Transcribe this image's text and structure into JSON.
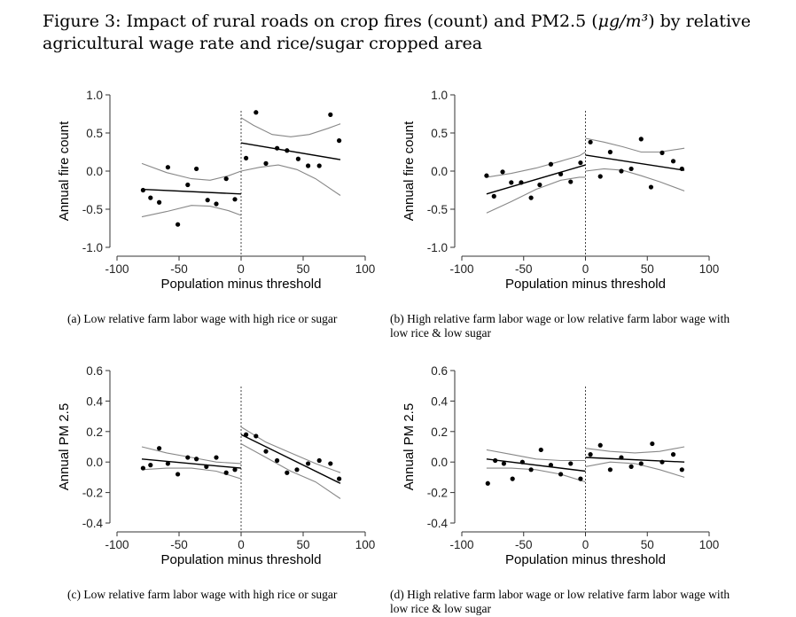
{
  "figure": {
    "title_prefix": "Figure 3: Impact of rural roads on crop fires (count) and PM2.5 (",
    "title_unit": "μg/m³",
    "title_suffix": ") by relative agricultural wage rate and rice/sugar cropped area"
  },
  "chart_data": [
    {
      "type": "scatter",
      "panel": "a",
      "caption": "(a)  Low relative farm labor wage with high rice or sugar",
      "xlabel": "Population minus threshold",
      "ylabel": "Annual fire count",
      "xlim": [
        -100,
        100
      ],
      "ylim": [
        -1.0,
        1.0
      ],
      "xticks": [
        -100,
        -50,
        0,
        50,
        100
      ],
      "yticks": [
        "-1.0",
        "-0.5",
        "0.0",
        "0.5",
        "1.0"
      ],
      "threshold_line": 0,
      "points": [
        [
          -79,
          -0.25
        ],
        [
          -73,
          -0.35
        ],
        [
          -66,
          -0.41
        ],
        [
          -59,
          0.05
        ],
        [
          -51,
          -0.7
        ],
        [
          -43,
          -0.18
        ],
        [
          -36,
          0.03
        ],
        [
          -27,
          -0.38
        ],
        [
          -20,
          -0.43
        ],
        [
          -12,
          -0.1
        ],
        [
          -5,
          -0.37
        ],
        [
          4,
          0.17
        ],
        [
          12,
          0.77
        ],
        [
          20,
          0.1
        ],
        [
          29,
          0.3
        ],
        [
          37,
          0.27
        ],
        [
          46,
          0.16
        ],
        [
          54,
          0.07
        ],
        [
          63,
          0.07
        ],
        [
          72,
          0.74
        ],
        [
          79,
          0.4
        ]
      ],
      "fit_left": [
        [
          -80,
          -0.24
        ],
        [
          0,
          -0.3
        ]
      ],
      "fit_right": [
        [
          0,
          0.37
        ],
        [
          80,
          0.15
        ]
      ],
      "ci_left_upper": [
        [
          -80,
          0.1
        ],
        [
          -60,
          -0.02
        ],
        [
          -40,
          -0.1
        ],
        [
          -25,
          -0.12
        ],
        [
          -10,
          -0.06
        ],
        [
          0,
          0.0
        ]
      ],
      "ci_left_lower": [
        [
          -80,
          -0.6
        ],
        [
          -60,
          -0.53
        ],
        [
          -40,
          -0.45
        ],
        [
          -25,
          -0.46
        ],
        [
          -10,
          -0.52
        ],
        [
          0,
          -0.58
        ]
      ],
      "ci_right_upper": [
        [
          0,
          0.7
        ],
        [
          10,
          0.6
        ],
        [
          25,
          0.48
        ],
        [
          40,
          0.45
        ],
        [
          55,
          0.48
        ],
        [
          70,
          0.56
        ],
        [
          80,
          0.62
        ]
      ],
      "ci_right_lower": [
        [
          0,
          0.0
        ],
        [
          15,
          0.05
        ],
        [
          30,
          0.08
        ],
        [
          45,
          0.02
        ],
        [
          60,
          -0.1
        ],
        [
          80,
          -0.32
        ]
      ]
    },
    {
      "type": "scatter",
      "panel": "b",
      "caption": "(b)  High relative farm labor wage or low relative farm labor wage with low rice & low sugar",
      "xlabel": "Population minus threshold",
      "ylabel": "Annual fire count",
      "xlim": [
        -100,
        100
      ],
      "ylim": [
        -1.0,
        1.0
      ],
      "xticks": [
        -100,
        -50,
        0,
        50,
        100
      ],
      "yticks": [
        "-1.0",
        "-0.5",
        "0.0",
        "0.5",
        "1.0"
      ],
      "threshold_line": 0,
      "points": [
        [
          -80,
          -0.06
        ],
        [
          -74,
          -0.33
        ],
        [
          -67,
          -0.01
        ],
        [
          -60,
          -0.15
        ],
        [
          -52,
          -0.15
        ],
        [
          -44,
          -0.35
        ],
        [
          -37,
          -0.18
        ],
        [
          -28,
          0.09
        ],
        [
          -20,
          -0.04
        ],
        [
          -12,
          -0.14
        ],
        [
          -4,
          0.11
        ],
        [
          4,
          0.38
        ],
        [
          12,
          -0.07
        ],
        [
          20,
          0.25
        ],
        [
          29,
          0.0
        ],
        [
          37,
          0.03
        ],
        [
          45,
          0.42
        ],
        [
          53,
          -0.21
        ],
        [
          62,
          0.24
        ],
        [
          71,
          0.13
        ],
        [
          78,
          0.03
        ]
      ],
      "fit_left": [
        [
          -80,
          -0.3
        ],
        [
          0,
          0.08
        ]
      ],
      "fit_right": [
        [
          0,
          0.21
        ],
        [
          80,
          0.01
        ]
      ],
      "ci_left_upper": [
        [
          -80,
          -0.08
        ],
        [
          -60,
          -0.03
        ],
        [
          -40,
          0.04
        ],
        [
          -20,
          0.13
        ],
        [
          -5,
          0.2
        ],
        [
          0,
          0.25
        ]
      ],
      "ci_left_lower": [
        [
          -80,
          -0.55
        ],
        [
          -60,
          -0.4
        ],
        [
          -40,
          -0.24
        ],
        [
          -20,
          -0.12
        ],
        [
          -5,
          -0.08
        ],
        [
          0,
          -0.08
        ]
      ],
      "ci_right_upper": [
        [
          0,
          0.43
        ],
        [
          15,
          0.38
        ],
        [
          30,
          0.32
        ],
        [
          45,
          0.25
        ],
        [
          60,
          0.25
        ],
        [
          80,
          0.3
        ]
      ],
      "ci_right_lower": [
        [
          0,
          0.0
        ],
        [
          15,
          0.03
        ],
        [
          30,
          0.01
        ],
        [
          45,
          -0.06
        ],
        [
          60,
          -0.14
        ],
        [
          80,
          -0.26
        ]
      ]
    },
    {
      "type": "scatter",
      "panel": "c",
      "caption": "(c)  Low relative farm labor wage with high rice or sugar",
      "xlabel": "Population minus threshold",
      "ylabel": "Annual PM 2.5",
      "xlim": [
        -100,
        100
      ],
      "ylim": [
        -0.4,
        0.6
      ],
      "xticks": [
        -100,
        -50,
        0,
        50,
        100
      ],
      "yticks": [
        "-0.4",
        "-0.2",
        "0.0",
        "0.2",
        "0.4",
        "0.6"
      ],
      "threshold_line": 0,
      "points": [
        [
          -79,
          -0.04
        ],
        [
          -73,
          -0.02
        ],
        [
          -66,
          0.09
        ],
        [
          -59,
          -0.01
        ],
        [
          -51,
          -0.08
        ],
        [
          -43,
          0.03
        ],
        [
          -36,
          0.02
        ],
        [
          -28,
          -0.03
        ],
        [
          -20,
          0.03
        ],
        [
          -12,
          -0.07
        ],
        [
          -5,
          -0.05
        ],
        [
          4,
          0.18
        ],
        [
          12,
          0.17
        ],
        [
          20,
          0.07
        ],
        [
          29,
          0.01
        ],
        [
          37,
          -0.07
        ],
        [
          45,
          -0.05
        ],
        [
          54,
          -0.01
        ],
        [
          63,
          0.01
        ],
        [
          72,
          -0.01
        ],
        [
          79,
          -0.11
        ]
      ],
      "fit_left": [
        [
          -80,
          0.02
        ],
        [
          0,
          -0.04
        ]
      ],
      "fit_right": [
        [
          0,
          0.18
        ],
        [
          80,
          -0.14
        ]
      ],
      "ci_left_upper": [
        [
          -80,
          0.1
        ],
        [
          -60,
          0.06
        ],
        [
          -40,
          0.03
        ],
        [
          -20,
          0.0
        ],
        [
          0,
          -0.01
        ]
      ],
      "ci_left_lower": [
        [
          -80,
          -0.05
        ],
        [
          -60,
          -0.04
        ],
        [
          -40,
          -0.04
        ],
        [
          -20,
          -0.06
        ],
        [
          0,
          -0.11
        ]
      ],
      "ci_right_upper": [
        [
          0,
          0.23
        ],
        [
          20,
          0.13
        ],
        [
          40,
          0.06
        ],
        [
          60,
          -0.01
        ],
        [
          80,
          -0.07
        ]
      ],
      "ci_right_lower": [
        [
          0,
          0.12
        ],
        [
          20,
          0.03
        ],
        [
          40,
          -0.06
        ],
        [
          60,
          -0.13
        ],
        [
          80,
          -0.24
        ]
      ]
    },
    {
      "type": "scatter",
      "panel": "d",
      "caption": "(d)  High relative farm labor wage or low relative farm labor wage with low rice & low sugar",
      "xlabel": "Population minus threshold",
      "ylabel": "Annual PM 2.5",
      "xlim": [
        -100,
        100
      ],
      "ylim": [
        -0.4,
        0.6
      ],
      "xticks": [
        -100,
        -50,
        0,
        50,
        100
      ],
      "yticks": [
        "-0.4",
        "-0.2",
        "0.0",
        "0.2",
        "0.4",
        "0.6"
      ],
      "threshold_line": 0,
      "points": [
        [
          -79,
          -0.14
        ],
        [
          -73,
          0.01
        ],
        [
          -66,
          -0.01
        ],
        [
          -59,
          -0.11
        ],
        [
          -51,
          0.0
        ],
        [
          -44,
          -0.05
        ],
        [
          -36,
          0.08
        ],
        [
          -28,
          -0.02
        ],
        [
          -20,
          -0.08
        ],
        [
          -12,
          -0.01
        ],
        [
          -4,
          -0.11
        ],
        [
          4,
          0.05
        ],
        [
          12,
          0.11
        ],
        [
          20,
          -0.05
        ],
        [
          29,
          0.03
        ],
        [
          37,
          -0.03
        ],
        [
          45,
          -0.01
        ],
        [
          54,
          0.12
        ],
        [
          62,
          0.0
        ],
        [
          71,
          0.05
        ],
        [
          78,
          -0.05
        ]
      ],
      "fit_left": [
        [
          -80,
          0.02
        ],
        [
          0,
          -0.06
        ]
      ],
      "fit_right": [
        [
          0,
          0.03
        ],
        [
          80,
          0.0
        ]
      ],
      "ci_left_upper": [
        [
          -80,
          0.08
        ],
        [
          -60,
          0.05
        ],
        [
          -40,
          0.02
        ],
        [
          -20,
          0.01
        ],
        [
          0,
          0.01
        ]
      ],
      "ci_left_lower": [
        [
          -80,
          -0.04
        ],
        [
          -60,
          -0.04
        ],
        [
          -40,
          -0.05
        ],
        [
          -20,
          -0.08
        ],
        [
          0,
          -0.13
        ]
      ],
      "ci_right_upper": [
        [
          0,
          0.09
        ],
        [
          20,
          0.07
        ],
        [
          40,
          0.06
        ],
        [
          60,
          0.07
        ],
        [
          80,
          0.1
        ]
      ],
      "ci_right_lower": [
        [
          0,
          -0.03
        ],
        [
          20,
          0.0
        ],
        [
          40,
          -0.01
        ],
        [
          60,
          -0.05
        ],
        [
          80,
          -0.1
        ]
      ]
    }
  ]
}
